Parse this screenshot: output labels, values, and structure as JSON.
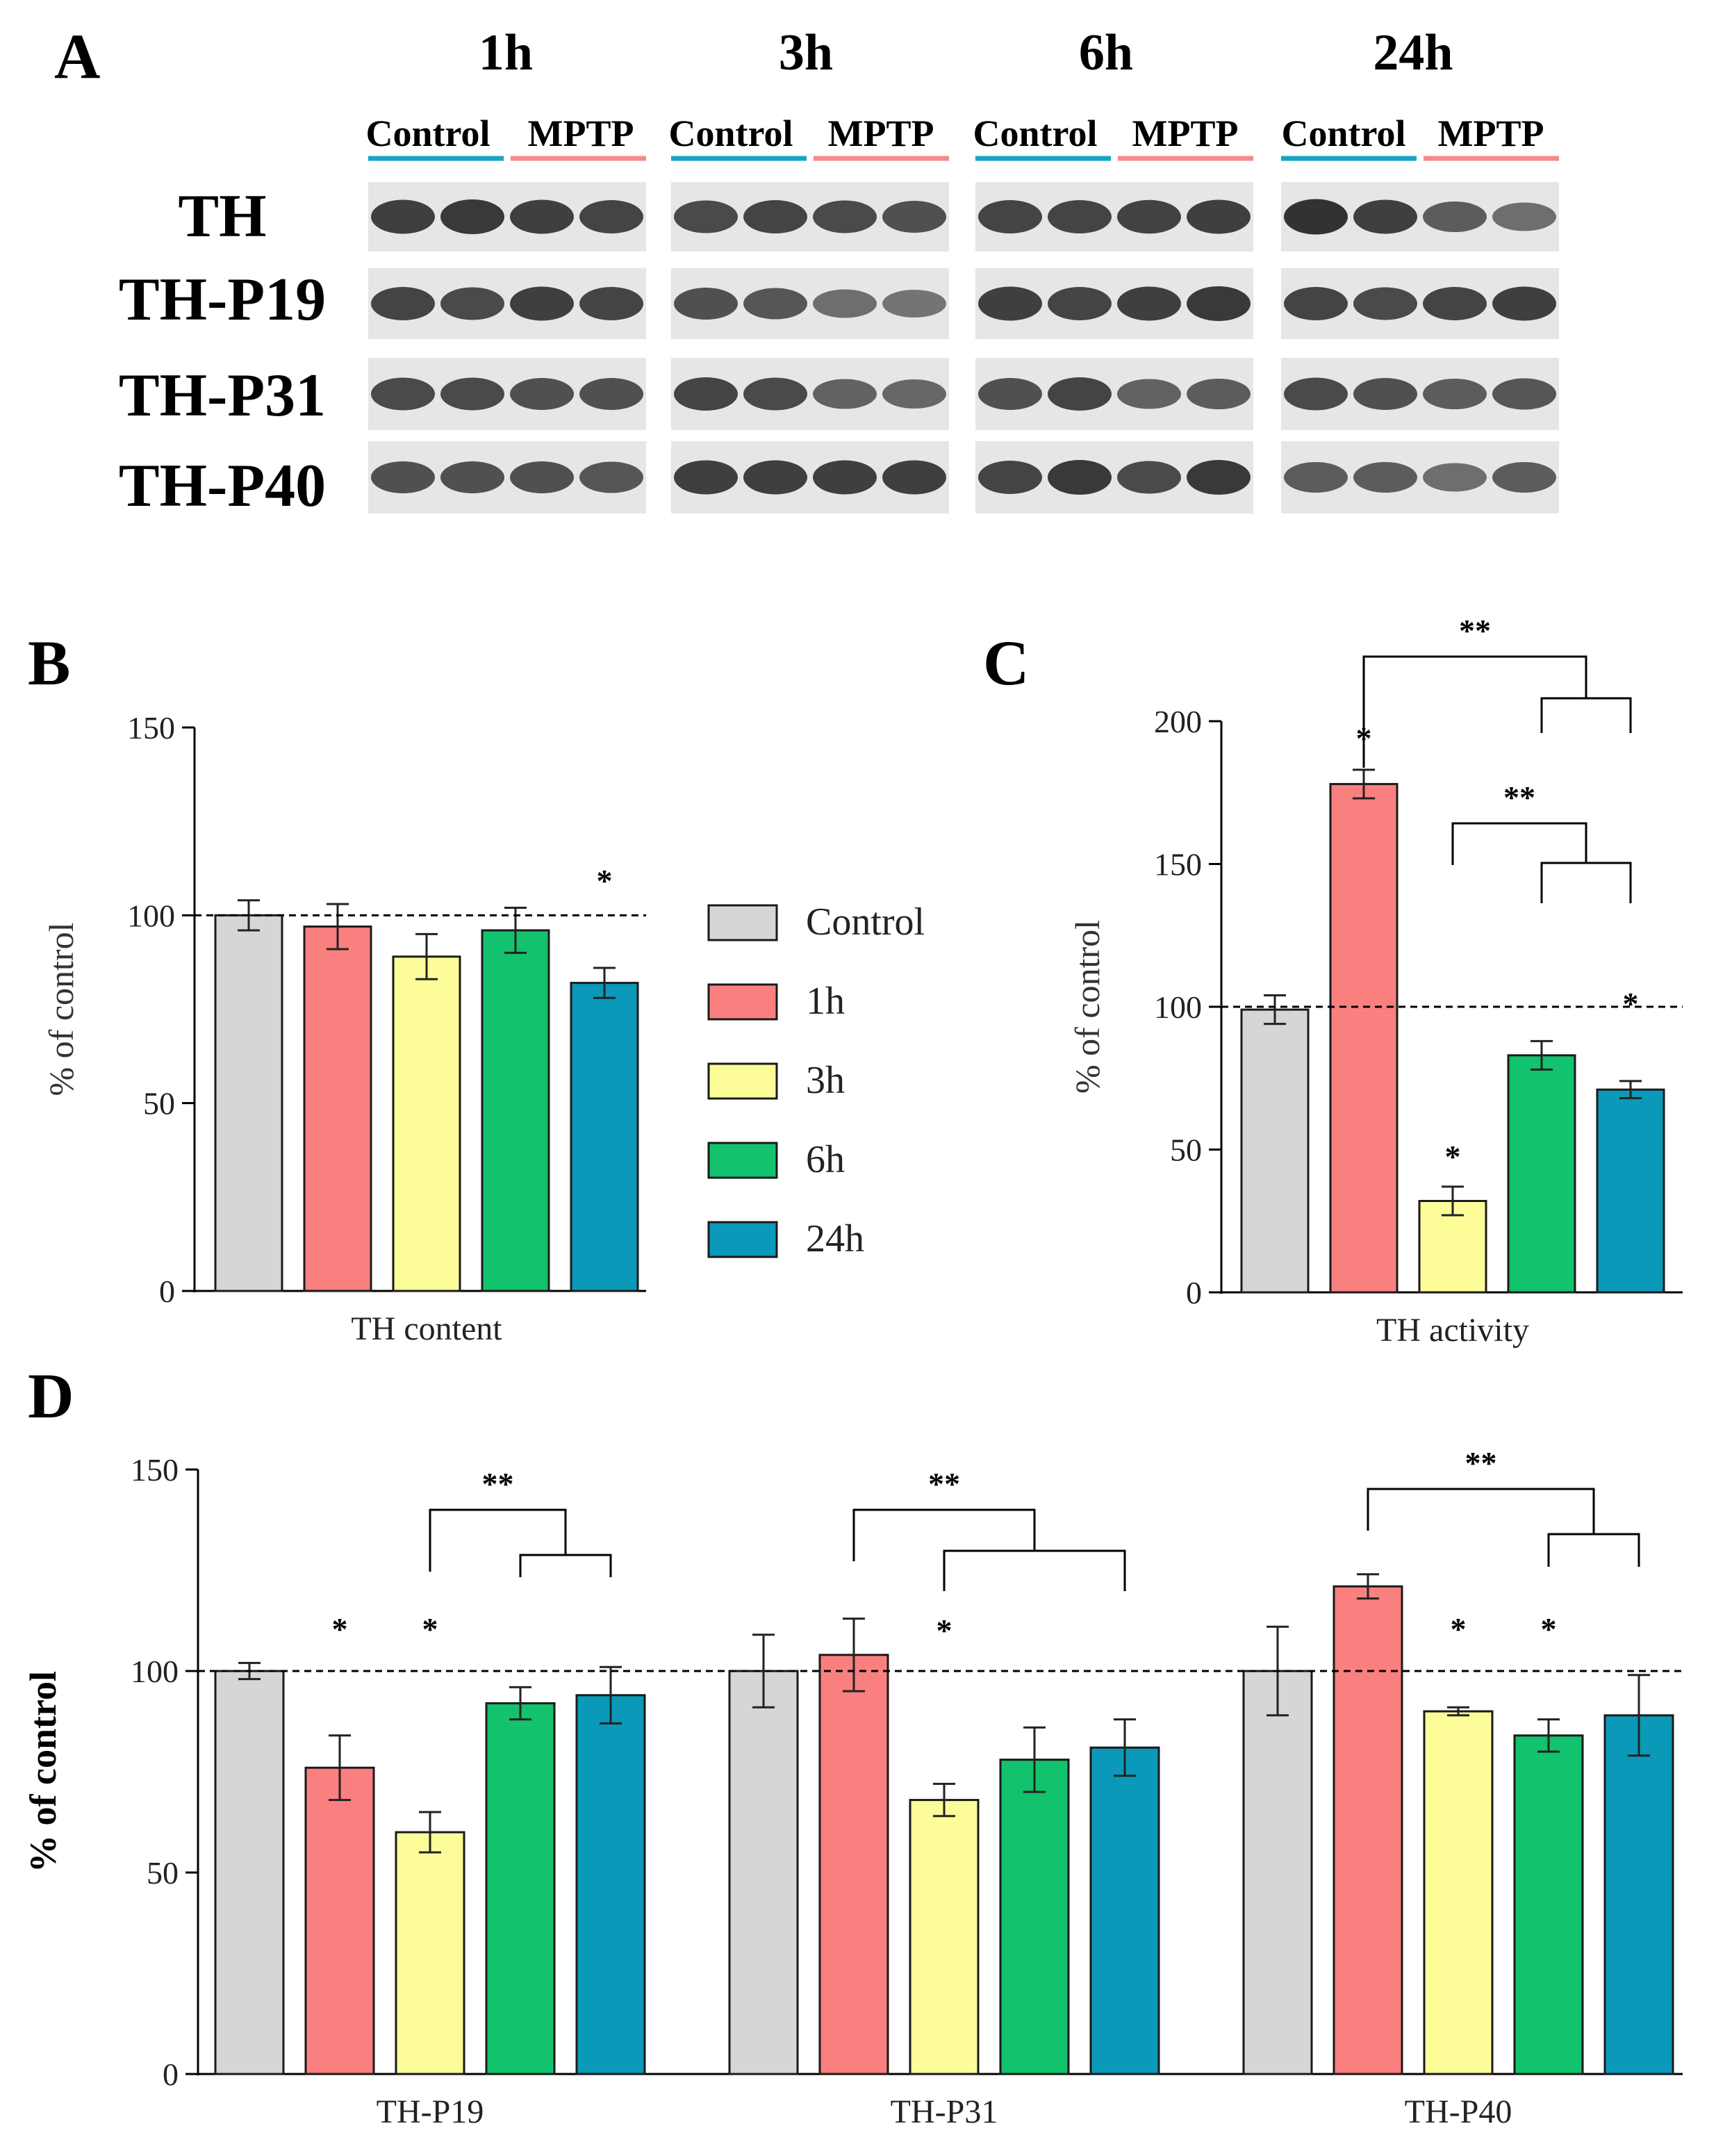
{
  "panel_labels": {
    "a": "A",
    "b": "B",
    "c": "C",
    "d": "D"
  },
  "colors": {
    "Control": "#d6d6d6",
    "1h": "#fa8080",
    "3h": "#fcfc99",
    "6h": "#12c26c",
    "24h": "#0a99b8",
    "control_line": "#16a6c3",
    "mptp_line": "#f58a8a",
    "blot_bg": "#e6e6e6",
    "blot_band": "#232323"
  },
  "blot": {
    "time_labels": [
      "1h",
      "3h",
      "6h",
      "24h"
    ],
    "group_labels": {
      "control": "Control",
      "mptp": "MPTP"
    },
    "row_labels": [
      "TH",
      "TH-P19",
      "TH-P31",
      "TH-P40"
    ],
    "band_intensity": [
      [
        [
          0.85,
          0.9,
          0.85,
          0.8
        ],
        [
          0.75,
          0.8,
          0.75,
          0.7
        ],
        [
          0.8,
          0.8,
          0.82,
          0.85
        ],
        [
          0.95,
          0.85,
          0.6,
          0.45
        ]
      ],
      [
        [
          0.8,
          0.75,
          0.85,
          0.8
        ],
        [
          0.7,
          0.65,
          0.45,
          0.4
        ],
        [
          0.85,
          0.8,
          0.85,
          0.9
        ],
        [
          0.8,
          0.75,
          0.8,
          0.85
        ]
      ],
      [
        [
          0.75,
          0.75,
          0.7,
          0.7
        ],
        [
          0.8,
          0.75,
          0.55,
          0.5
        ],
        [
          0.7,
          0.8,
          0.55,
          0.6
        ],
        [
          0.75,
          0.7,
          0.6,
          0.65
        ]
      ],
      [
        [
          0.7,
          0.7,
          0.7,
          0.65
        ],
        [
          0.85,
          0.85,
          0.85,
          0.85
        ],
        [
          0.8,
          0.9,
          0.75,
          0.9
        ],
        [
          0.6,
          0.6,
          0.45,
          0.6
        ]
      ]
    ]
  },
  "legend": [
    "Control",
    "1h",
    "3h",
    "6h",
    "24h"
  ],
  "chart_data": [
    {
      "panel": "B",
      "type": "bar",
      "categories": [
        "TH content"
      ],
      "series": [
        {
          "name": "Control",
          "values": [
            100
          ],
          "errors": [
            4
          ]
        },
        {
          "name": "1h",
          "values": [
            97
          ],
          "errors": [
            6
          ]
        },
        {
          "name": "3h",
          "values": [
            89
          ],
          "errors": [
            6
          ]
        },
        {
          "name": "6h",
          "values": [
            96
          ],
          "errors": [
            6
          ]
        },
        {
          "name": "24h",
          "values": [
            82
          ],
          "errors": [
            4
          ]
        }
      ],
      "stars": [
        {
          "series": "24h",
          "category": 0,
          "label": "*"
        }
      ],
      "brackets": [],
      "ylabel": "% of control",
      "ylim": [
        0,
        150
      ],
      "yticks": [
        0,
        50,
        100,
        150
      ],
      "reference_line": 100
    },
    {
      "panel": "C",
      "type": "bar",
      "categories": [
        "TH activity"
      ],
      "series": [
        {
          "name": "Control",
          "values": [
            99
          ],
          "errors": [
            5
          ]
        },
        {
          "name": "1h",
          "values": [
            178
          ],
          "errors": [
            5
          ]
        },
        {
          "name": "3h",
          "values": [
            32
          ],
          "errors": [
            5
          ]
        },
        {
          "name": "6h",
          "values": [
            83
          ],
          "errors": [
            5
          ]
        },
        {
          "name": "24h",
          "values": [
            71
          ],
          "errors": [
            3
          ]
        }
      ],
      "stars": [
        {
          "series": "1h",
          "category": 0,
          "label": "*"
        },
        {
          "series": "3h",
          "category": 0,
          "label": "*"
        },
        {
          "series": "24h",
          "category": 0,
          "label": "*"
        }
      ],
      "brackets": [
        {
          "category": 0,
          "label": "**",
          "from": "1h",
          "to": [
            "6h",
            "24h"
          ],
          "level": 0
        },
        {
          "category": 0,
          "label": "**",
          "from": "3h",
          "to": [
            "6h",
            "24h"
          ],
          "level": 1
        }
      ],
      "ylabel": "% of control",
      "ylim": [
        0,
        200
      ],
      "yticks": [
        0,
        50,
        100,
        150,
        200
      ],
      "reference_line": 100
    },
    {
      "panel": "D",
      "type": "bar",
      "categories": [
        "TH-P19",
        "TH-P31",
        "TH-P40"
      ],
      "series": [
        {
          "name": "Control",
          "values": [
            100,
            100,
            100
          ],
          "errors": [
            2,
            9,
            11
          ]
        },
        {
          "name": "1h",
          "values": [
            76,
            104,
            121
          ],
          "errors": [
            8,
            9,
            3
          ]
        },
        {
          "name": "3h",
          "values": [
            60,
            68,
            90
          ],
          "errors": [
            5,
            4,
            1
          ]
        },
        {
          "name": "6h",
          "values": [
            92,
            78,
            84
          ],
          "errors": [
            4,
            8,
            4
          ]
        },
        {
          "name": "24h",
          "values": [
            94,
            81,
            89
          ],
          "errors": [
            7,
            7,
            10
          ]
        }
      ],
      "stars": [
        {
          "series": "1h",
          "category": 0,
          "label": "*"
        },
        {
          "series": "3h",
          "category": 0,
          "label": "*"
        },
        {
          "series": "3h",
          "category": 1,
          "label": "*"
        },
        {
          "series": "3h",
          "category": 2,
          "label": "*"
        },
        {
          "series": "6h",
          "category": 2,
          "label": "*"
        }
      ],
      "brackets": [
        {
          "category": 0,
          "label": "**",
          "from": "3h",
          "to": [
            "6h",
            "24h"
          ],
          "level": 0
        },
        {
          "category": 1,
          "label": "**",
          "from": "1h",
          "to": [
            "3h",
            "24h"
          ],
          "level": 0
        },
        {
          "category": 2,
          "label": "**",
          "from": "1h",
          "to": [
            "6h",
            "24h"
          ],
          "level": 0
        }
      ],
      "ylabel": "% of control",
      "ylim": [
        0,
        150
      ],
      "yticks": [
        0,
        50,
        100,
        150
      ],
      "reference_line": 100
    }
  ]
}
